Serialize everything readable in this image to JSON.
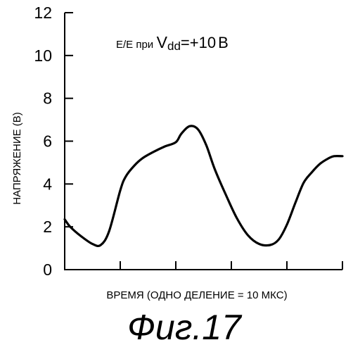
{
  "chart_data": {
    "type": "line",
    "ylabel": "НАПРЯЖЕНИЕ (В)",
    "xlabel": "ВРЕМЯ (ОДНО ДЕЛЕНИЕ = 10 МКС)",
    "ylim": [
      0,
      12
    ],
    "yticks": [
      "0",
      "2",
      "4",
      "6",
      "8",
      "10",
      "12"
    ],
    "xlim": [
      0,
      50
    ],
    "x_tick_values": [
      10,
      20,
      30,
      40,
      50
    ],
    "grid": false,
    "annotation": {
      "prefix": "Е/Е при",
      "v": "V",
      "sub": "dd",
      "value": "=+10",
      "unit": "В"
    },
    "series": [
      {
        "x": [
          0,
          1,
          3,
          5,
          6.5,
          8,
          10,
          11,
          12.5,
          14,
          16,
          18,
          20,
          21,
          22.5,
          24,
          25.5,
          27,
          29,
          31,
          33,
          35,
          37,
          38.5,
          40,
          41.5,
          43,
          44.5,
          46,
          47.5,
          48.5,
          50
        ],
        "values": [
          2.35,
          2.0,
          1.55,
          1.2,
          1.15,
          1.8,
          3.7,
          4.35,
          4.85,
          5.2,
          5.5,
          5.75,
          5.95,
          6.35,
          6.7,
          6.55,
          5.8,
          4.7,
          3.5,
          2.4,
          1.6,
          1.2,
          1.15,
          1.4,
          2.1,
          3.1,
          4.05,
          4.55,
          4.95,
          5.2,
          5.3,
          5.3
        ]
      }
    ]
  },
  "caption": "Фиг.17"
}
